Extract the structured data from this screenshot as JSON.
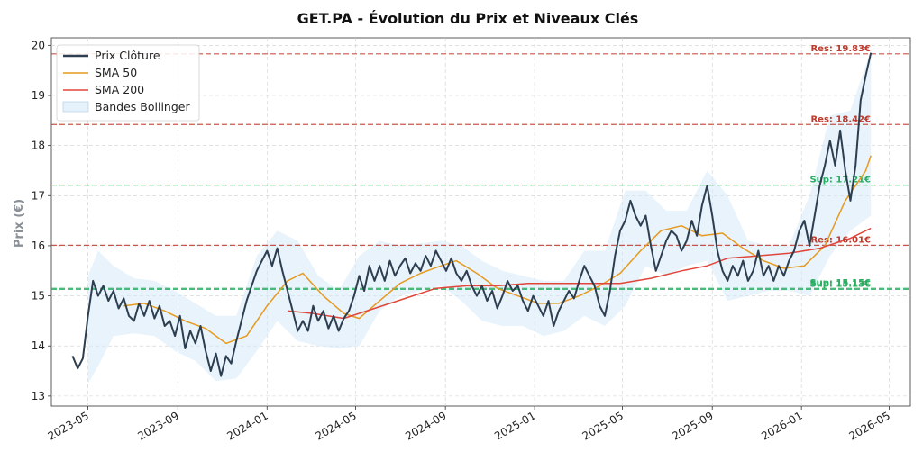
{
  "chart_data": {
    "type": "line",
    "title": "GET.PA - Évolution du Prix et Niveaux Clés",
    "ylabel": "Prix (€)",
    "xlabel": "",
    "ylim": [
      12.8,
      20.15
    ],
    "xlim": [
      "2023-03-12",
      "2026-05-30"
    ],
    "yticks": [
      13,
      14,
      15,
      16,
      17,
      18,
      19,
      20
    ],
    "xticks": [
      "2023-05",
      "2023-09",
      "2024-01",
      "2024-05",
      "2024-09",
      "2025-01",
      "2025-05",
      "2025-09",
      "2026-01",
      "2026-05"
    ],
    "grid": true,
    "legend_position": "top-left",
    "series": [
      {
        "name": "Prix Clôture",
        "color": "#2c3e50",
        "points": [
          [
            "2023-04-10",
            13.8
          ],
          [
            "2023-04-17",
            13.55
          ],
          [
            "2023-04-24",
            13.75
          ],
          [
            "2023-05-01",
            14.6
          ],
          [
            "2023-05-08",
            15.3
          ],
          [
            "2023-05-15",
            15.0
          ],
          [
            "2023-05-22",
            15.2
          ],
          [
            "2023-05-29",
            14.9
          ],
          [
            "2023-06-05",
            15.1
          ],
          [
            "2023-06-12",
            14.75
          ],
          [
            "2023-06-19",
            14.95
          ],
          [
            "2023-06-26",
            14.6
          ],
          [
            "2023-07-03",
            14.5
          ],
          [
            "2023-07-10",
            14.85
          ],
          [
            "2023-07-17",
            14.6
          ],
          [
            "2023-07-24",
            14.9
          ],
          [
            "2023-07-31",
            14.55
          ],
          [
            "2023-08-07",
            14.8
          ],
          [
            "2023-08-14",
            14.4
          ],
          [
            "2023-08-21",
            14.5
          ],
          [
            "2023-08-28",
            14.2
          ],
          [
            "2023-09-04",
            14.6
          ],
          [
            "2023-09-11",
            13.95
          ],
          [
            "2023-09-18",
            14.3
          ],
          [
            "2023-09-25",
            14.05
          ],
          [
            "2023-10-02",
            14.4
          ],
          [
            "2023-10-09",
            13.9
          ],
          [
            "2023-10-16",
            13.5
          ],
          [
            "2023-10-23",
            13.85
          ],
          [
            "2023-10-30",
            13.4
          ],
          [
            "2023-11-06",
            13.8
          ],
          [
            "2023-11-13",
            13.65
          ],
          [
            "2023-11-20",
            14.1
          ],
          [
            "2023-11-27",
            14.5
          ],
          [
            "2023-12-04",
            14.9
          ],
          [
            "2023-12-11",
            15.2
          ],
          [
            "2023-12-18",
            15.5
          ],
          [
            "2023-12-25",
            15.7
          ],
          [
            "2024-01-01",
            15.9
          ],
          [
            "2024-01-08",
            15.6
          ],
          [
            "2024-01-15",
            15.95
          ],
          [
            "2024-01-22",
            15.5
          ],
          [
            "2024-01-29",
            15.1
          ],
          [
            "2024-02-05",
            14.7
          ],
          [
            "2024-02-12",
            14.3
          ],
          [
            "2024-02-19",
            14.5
          ],
          [
            "2024-02-26",
            14.3
          ],
          [
            "2024-03-04",
            14.8
          ],
          [
            "2024-03-11",
            14.5
          ],
          [
            "2024-03-18",
            14.7
          ],
          [
            "2024-03-25",
            14.35
          ],
          [
            "2024-04-01",
            14.6
          ],
          [
            "2024-04-08",
            14.3
          ],
          [
            "2024-04-15",
            14.55
          ],
          [
            "2024-04-22",
            14.7
          ],
          [
            "2024-04-29",
            15.0
          ],
          [
            "2024-05-06",
            15.4
          ],
          [
            "2024-05-13",
            15.1
          ],
          [
            "2024-05-20",
            15.6
          ],
          [
            "2024-05-27",
            15.3
          ],
          [
            "2024-06-03",
            15.6
          ],
          [
            "2024-06-10",
            15.3
          ],
          [
            "2024-06-17",
            15.7
          ],
          [
            "2024-06-24",
            15.4
          ],
          [
            "2024-07-01",
            15.6
          ],
          [
            "2024-07-08",
            15.75
          ],
          [
            "2024-07-15",
            15.45
          ],
          [
            "2024-07-22",
            15.65
          ],
          [
            "2024-07-29",
            15.5
          ],
          [
            "2024-08-05",
            15.8
          ],
          [
            "2024-08-12",
            15.6
          ],
          [
            "2024-08-19",
            15.9
          ],
          [
            "2024-08-26",
            15.7
          ],
          [
            "2024-09-02",
            15.5
          ],
          [
            "2024-09-09",
            15.75
          ],
          [
            "2024-09-16",
            15.45
          ],
          [
            "2024-09-23",
            15.3
          ],
          [
            "2024-09-30",
            15.5
          ],
          [
            "2024-10-07",
            15.2
          ],
          [
            "2024-10-14",
            15.0
          ],
          [
            "2024-10-21",
            15.2
          ],
          [
            "2024-10-28",
            14.9
          ],
          [
            "2024-11-04",
            15.1
          ],
          [
            "2024-11-11",
            14.75
          ],
          [
            "2024-11-18",
            15.0
          ],
          [
            "2024-11-25",
            15.3
          ],
          [
            "2024-12-02",
            15.1
          ],
          [
            "2024-12-09",
            15.2
          ],
          [
            "2024-12-16",
            14.9
          ],
          [
            "2024-12-23",
            14.7
          ],
          [
            "2024-12-30",
            15.0
          ],
          [
            "2025-01-06",
            14.8
          ],
          [
            "2025-01-13",
            14.6
          ],
          [
            "2025-01-20",
            14.9
          ],
          [
            "2025-01-27",
            14.4
          ],
          [
            "2025-02-03",
            14.7
          ],
          [
            "2025-02-10",
            14.9
          ],
          [
            "2025-02-17",
            15.1
          ],
          [
            "2025-02-24",
            14.95
          ],
          [
            "2025-03-03",
            15.3
          ],
          [
            "2025-03-10",
            15.6
          ],
          [
            "2025-03-17",
            15.4
          ],
          [
            "2025-03-24",
            15.2
          ],
          [
            "2025-03-31",
            14.8
          ],
          [
            "2025-04-07",
            14.6
          ],
          [
            "2025-04-14",
            15.1
          ],
          [
            "2025-04-21",
            15.8
          ],
          [
            "2025-04-28",
            16.3
          ],
          [
            "2025-05-05",
            16.5
          ],
          [
            "2025-05-12",
            16.9
          ],
          [
            "2025-05-19",
            16.6
          ],
          [
            "2025-05-26",
            16.4
          ],
          [
            "2025-06-02",
            16.6
          ],
          [
            "2025-06-09",
            16.0
          ],
          [
            "2025-06-16",
            15.5
          ],
          [
            "2025-06-23",
            15.8
          ],
          [
            "2025-06-30",
            16.1
          ],
          [
            "2025-07-07",
            16.3
          ],
          [
            "2025-07-14",
            16.2
          ],
          [
            "2025-07-21",
            15.9
          ],
          [
            "2025-07-28",
            16.1
          ],
          [
            "2025-08-04",
            16.5
          ],
          [
            "2025-08-11",
            16.2
          ],
          [
            "2025-08-18",
            16.8
          ],
          [
            "2025-08-25",
            17.2
          ],
          [
            "2025-09-01",
            16.6
          ],
          [
            "2025-09-08",
            15.9
          ],
          [
            "2025-09-15",
            15.5
          ],
          [
            "2025-09-22",
            15.3
          ],
          [
            "2025-09-29",
            15.6
          ],
          [
            "2025-10-06",
            15.4
          ],
          [
            "2025-10-13",
            15.7
          ],
          [
            "2025-10-20",
            15.3
          ],
          [
            "2025-10-27",
            15.5
          ],
          [
            "2025-11-03",
            15.9
          ],
          [
            "2025-11-10",
            15.4
          ],
          [
            "2025-11-17",
            15.6
          ],
          [
            "2025-11-24",
            15.3
          ],
          [
            "2025-12-01",
            15.6
          ],
          [
            "2025-12-08",
            15.4
          ],
          [
            "2025-12-15",
            15.7
          ],
          [
            "2025-12-22",
            15.9
          ],
          [
            "2025-12-29",
            16.3
          ],
          [
            "2026-01-05",
            16.5
          ],
          [
            "2026-01-12",
            16.0
          ],
          [
            "2026-01-19",
            16.6
          ],
          [
            "2026-01-26",
            17.2
          ],
          [
            "2026-02-02",
            17.6
          ],
          [
            "2026-02-09",
            18.1
          ],
          [
            "2026-02-16",
            17.6
          ],
          [
            "2026-02-23",
            18.3
          ],
          [
            "2026-03-02",
            17.5
          ],
          [
            "2026-03-09",
            16.9
          ],
          [
            "2026-03-16",
            17.6
          ],
          [
            "2026-03-23",
            18.9
          ],
          [
            "2026-03-30",
            19.4
          ],
          [
            "2026-04-06",
            19.85
          ]
        ]
      },
      {
        "name": "SMA 50",
        "color": "#e69a1f",
        "points": [
          [
            "2023-06-19",
            14.8
          ],
          [
            "2023-07-17",
            14.85
          ],
          [
            "2023-08-14",
            14.7
          ],
          [
            "2023-09-11",
            14.5
          ],
          [
            "2023-10-09",
            14.35
          ],
          [
            "2023-11-06",
            14.05
          ],
          [
            "2023-12-04",
            14.2
          ],
          [
            "2024-01-01",
            14.8
          ],
          [
            "2024-01-29",
            15.3
          ],
          [
            "2024-02-19",
            15.45
          ],
          [
            "2024-03-18",
            15.0
          ],
          [
            "2024-04-15",
            14.65
          ],
          [
            "2024-05-06",
            14.55
          ],
          [
            "2024-06-03",
            14.9
          ],
          [
            "2024-07-01",
            15.25
          ],
          [
            "2024-07-29",
            15.45
          ],
          [
            "2024-08-26",
            15.6
          ],
          [
            "2024-09-16",
            15.7
          ],
          [
            "2024-10-14",
            15.45
          ],
          [
            "2024-11-11",
            15.15
          ],
          [
            "2024-12-09",
            15.0
          ],
          [
            "2025-01-06",
            14.85
          ],
          [
            "2025-02-03",
            14.85
          ],
          [
            "2025-03-03",
            15.0
          ],
          [
            "2025-03-31",
            15.2
          ],
          [
            "2025-04-28",
            15.45
          ],
          [
            "2025-05-26",
            15.9
          ],
          [
            "2025-06-23",
            16.3
          ],
          [
            "2025-07-21",
            16.4
          ],
          [
            "2025-08-18",
            16.2
          ],
          [
            "2025-09-15",
            16.25
          ],
          [
            "2025-10-13",
            15.95
          ],
          [
            "2025-11-10",
            15.7
          ],
          [
            "2025-12-08",
            15.55
          ],
          [
            "2026-01-05",
            15.6
          ],
          [
            "2026-02-02",
            16.0
          ],
          [
            "2026-03-02",
            16.9
          ],
          [
            "2026-03-30",
            17.5
          ],
          [
            "2026-04-06",
            17.8
          ]
        ]
      },
      {
        "name": "SMA 200",
        "color": "#e0463a",
        "points": [
          [
            "2024-01-29",
            14.7
          ],
          [
            "2024-03-04",
            14.65
          ],
          [
            "2024-04-15",
            14.55
          ],
          [
            "2024-05-27",
            14.75
          ],
          [
            "2024-07-08",
            14.95
          ],
          [
            "2024-08-19",
            15.15
          ],
          [
            "2024-09-30",
            15.2
          ],
          [
            "2024-11-11",
            15.2
          ],
          [
            "2024-12-23",
            15.25
          ],
          [
            "2025-02-03",
            15.25
          ],
          [
            "2025-03-17",
            15.25
          ],
          [
            "2025-04-28",
            15.25
          ],
          [
            "2025-06-09",
            15.35
          ],
          [
            "2025-07-21",
            15.5
          ],
          [
            "2025-08-25",
            15.6
          ],
          [
            "2025-09-22",
            15.75
          ],
          [
            "2025-11-03",
            15.8
          ],
          [
            "2025-12-15",
            15.85
          ],
          [
            "2026-01-26",
            15.95
          ],
          [
            "2026-03-09",
            16.15
          ],
          [
            "2026-04-06",
            16.35
          ]
        ]
      }
    ],
    "bollinger": {
      "name": "Bandes Bollinger",
      "color": "#d6eaf8",
      "points": [
        [
          "2023-05-01",
          13.25,
          15.4
        ],
        [
          "2023-05-15",
          13.6,
          15.9
        ],
        [
          "2023-06-05",
          14.2,
          15.6
        ],
        [
          "2023-07-03",
          14.25,
          15.35
        ],
        [
          "2023-07-31",
          14.2,
          15.3
        ],
        [
          "2023-08-28",
          13.9,
          15.1
        ],
        [
          "2023-09-25",
          13.7,
          14.85
        ],
        [
          "2023-10-23",
          13.3,
          14.6
        ],
        [
          "2023-11-20",
          13.35,
          14.6
        ],
        [
          "2023-12-18",
          13.9,
          15.8
        ],
        [
          "2024-01-15",
          14.5,
          16.3
        ],
        [
          "2024-02-12",
          14.1,
          16.1
        ],
        [
          "2024-03-11",
          14.0,
          15.4
        ],
        [
          "2024-04-08",
          13.95,
          15.1
        ],
        [
          "2024-05-06",
          14.0,
          15.8
        ],
        [
          "2024-06-03",
          14.7,
          16.1
        ],
        [
          "2024-07-01",
          15.0,
          16.0
        ],
        [
          "2024-07-29",
          15.1,
          16.05
        ],
        [
          "2024-08-26",
          15.2,
          16.1
        ],
        [
          "2024-09-23",
          14.9,
          16.0
        ],
        [
          "2024-10-21",
          14.5,
          15.7
        ],
        [
          "2024-11-18",
          14.4,
          15.5
        ],
        [
          "2024-12-16",
          14.4,
          15.4
        ],
        [
          "2025-01-13",
          14.2,
          15.3
        ],
        [
          "2025-02-10",
          14.3,
          15.3
        ],
        [
          "2025-03-10",
          14.6,
          15.9
        ],
        [
          "2025-04-07",
          14.4,
          15.9
        ],
        [
          "2025-05-05",
          14.8,
          17.1
        ],
        [
          "2025-06-02",
          15.6,
          17.1
        ],
        [
          "2025-06-30",
          15.4,
          16.7
        ],
        [
          "2025-07-28",
          15.6,
          16.7
        ],
        [
          "2025-08-25",
          15.7,
          17.5
        ],
        [
          "2025-09-22",
          14.9,
          17.0
        ],
        [
          "2025-10-20",
          15.0,
          16.1
        ],
        [
          "2025-11-17",
          15.1,
          16.0
        ],
        [
          "2025-12-15",
          15.1,
          16.0
        ],
        [
          "2026-01-12",
          15.0,
          17.0
        ],
        [
          "2026-02-09",
          15.8,
          18.6
        ],
        [
          "2026-03-09",
          16.3,
          18.7
        ],
        [
          "2026-04-06",
          16.6,
          19.9
        ]
      ]
    },
    "levels": [
      {
        "label": "Res: 19.83€",
        "value": 19.83,
        "kind": "resistance",
        "color": "#c0392b"
      },
      {
        "label": "Res: 18.42€",
        "value": 18.42,
        "kind": "resistance",
        "color": "#c0392b"
      },
      {
        "label": "Sup: 17.21€",
        "value": 17.21,
        "kind": "support",
        "color": "#27ae60"
      },
      {
        "label": "Res: 16.01€",
        "value": 16.01,
        "kind": "resistance",
        "color": "#c0392b"
      },
      {
        "label": "Sup: 15.15€",
        "value": 15.15,
        "kind": "support",
        "color": "#27ae60"
      },
      {
        "label": "Sup: 15.13€",
        "value": 15.13,
        "kind": "support",
        "color": "#27ae60"
      }
    ]
  }
}
